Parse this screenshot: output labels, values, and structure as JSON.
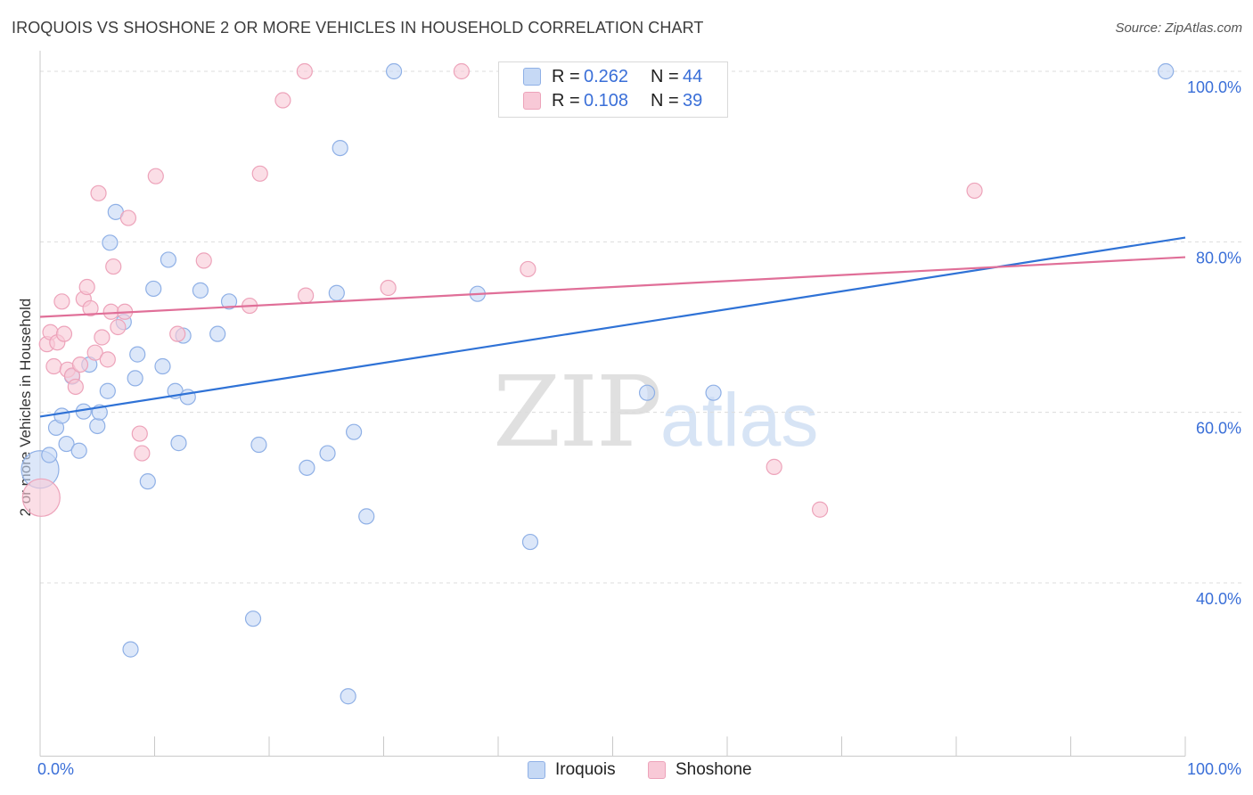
{
  "header": {
    "title": "IROQUOIS VS SHOSHONE 2 OR MORE VEHICLES IN HOUSEHOLD CORRELATION CHART",
    "source": "Source: ZipAtlas.com"
  },
  "watermark": {
    "zip": "ZIP",
    "atlas": "atlas"
  },
  "legend": {
    "r_label": "R =",
    "n_label": "N =",
    "rows": [
      {
        "series": "Iroquois",
        "r": "0.262",
        "n": "44"
      },
      {
        "series": "Shoshone",
        "r": "0.108",
        "n": "39"
      }
    ]
  },
  "colors": {
    "iroquois_fill": "#c6d9f5",
    "iroquois_stroke": "#8fb0e6",
    "iroquois_line": "#2f72d6",
    "shoshone_fill": "#f8c9d7",
    "shoshone_stroke": "#eda3ba",
    "shoshone_line": "#e06f98",
    "tick_label": "#3a6fd8"
  },
  "chart_data": {
    "type": "scatter",
    "title": "IROQUOIS VS SHOSHONE 2 OR MORE VEHICLES IN HOUSEHOLD CORRELATION CHART",
    "xlabel": "",
    "ylabel": "2 or more Vehicles in Household",
    "xlim": [
      0,
      100
    ],
    "ylim": [
      20,
      102
    ],
    "x_tick_labels": [
      "0.0%",
      "100.0%"
    ],
    "y_ticks": [
      40,
      60,
      80,
      100
    ],
    "y_tick_labels": [
      "40.0%",
      "60.0%",
      "80.0%",
      "100.0%"
    ],
    "grid": true,
    "legend_position": "top-center",
    "series": [
      {
        "name": "Iroquois",
        "r": 0.262,
        "n": 44,
        "trend": {
          "x": [
            0,
            100
          ],
          "y": [
            59.5,
            80.5
          ]
        },
        "points": [
          {
            "x": 0.0,
            "y": 53.3,
            "big": true
          },
          {
            "x": 0.8,
            "y": 55.0
          },
          {
            "x": 1.4,
            "y": 58.2
          },
          {
            "x": 1.9,
            "y": 59.6
          },
          {
            "x": 2.3,
            "y": 56.3
          },
          {
            "x": 2.8,
            "y": 64.2
          },
          {
            "x": 3.4,
            "y": 55.5
          },
          {
            "x": 3.8,
            "y": 60.1
          },
          {
            "x": 4.3,
            "y": 65.6
          },
          {
            "x": 5.0,
            "y": 58.4
          },
          {
            "x": 5.2,
            "y": 60.0
          },
          {
            "x": 5.9,
            "y": 62.5
          },
          {
            "x": 6.1,
            "y": 79.9
          },
          {
            "x": 6.6,
            "y": 83.5
          },
          {
            "x": 7.3,
            "y": 70.6
          },
          {
            "x": 7.9,
            "y": 32.2
          },
          {
            "x": 8.3,
            "y": 64.0
          },
          {
            "x": 8.5,
            "y": 66.8
          },
          {
            "x": 9.4,
            "y": 51.9
          },
          {
            "x": 9.9,
            "y": 74.5
          },
          {
            "x": 10.7,
            "y": 65.4
          },
          {
            "x": 11.2,
            "y": 77.9
          },
          {
            "x": 11.8,
            "y": 62.5
          },
          {
            "x": 12.1,
            "y": 56.4
          },
          {
            "x": 12.5,
            "y": 69.0
          },
          {
            "x": 12.9,
            "y": 61.8
          },
          {
            "x": 14.0,
            "y": 74.3
          },
          {
            "x": 15.5,
            "y": 69.2
          },
          {
            "x": 16.5,
            "y": 73.0
          },
          {
            "x": 18.6,
            "y": 35.8
          },
          {
            "x": 19.1,
            "y": 56.2
          },
          {
            "x": 23.3,
            "y": 53.5
          },
          {
            "x": 25.1,
            "y": 55.2
          },
          {
            "x": 25.9,
            "y": 74.0
          },
          {
            "x": 26.2,
            "y": 91.0
          },
          {
            "x": 26.9,
            "y": 26.7
          },
          {
            "x": 27.4,
            "y": 57.7
          },
          {
            "x": 28.5,
            "y": 47.8
          },
          {
            "x": 30.9,
            "y": 100.0
          },
          {
            "x": 38.2,
            "y": 73.9
          },
          {
            "x": 42.8,
            "y": 44.8
          },
          {
            "x": 53.0,
            "y": 62.3
          },
          {
            "x": 58.8,
            "y": 62.3
          },
          {
            "x": 98.3,
            "y": 100.0
          }
        ]
      },
      {
        "name": "Shoshone",
        "r": 0.108,
        "n": 39,
        "trend": {
          "x": [
            0,
            100
          ],
          "y": [
            71.2,
            78.2
          ]
        },
        "points": [
          {
            "x": 0.1,
            "y": 50.0,
            "big": true
          },
          {
            "x": 0.6,
            "y": 68.0
          },
          {
            "x": 0.9,
            "y": 69.4
          },
          {
            "x": 1.2,
            "y": 65.4
          },
          {
            "x": 1.5,
            "y": 68.2
          },
          {
            "x": 1.9,
            "y": 73.0
          },
          {
            "x": 2.1,
            "y": 69.2
          },
          {
            "x": 2.4,
            "y": 65.0
          },
          {
            "x": 2.8,
            "y": 64.3
          },
          {
            "x": 3.1,
            "y": 63.0
          },
          {
            "x": 3.5,
            "y": 65.6
          },
          {
            "x": 3.8,
            "y": 73.3
          },
          {
            "x": 4.1,
            "y": 74.7
          },
          {
            "x": 4.4,
            "y": 72.2
          },
          {
            "x": 4.8,
            "y": 67.0
          },
          {
            "x": 5.1,
            "y": 85.7
          },
          {
            "x": 5.4,
            "y": 68.8
          },
          {
            "x": 5.9,
            "y": 66.2
          },
          {
            "x": 6.2,
            "y": 71.8
          },
          {
            "x": 6.4,
            "y": 77.1
          },
          {
            "x": 6.8,
            "y": 70.0
          },
          {
            "x": 7.4,
            "y": 71.8
          },
          {
            "x": 7.7,
            "y": 82.8
          },
          {
            "x": 8.7,
            "y": 57.5
          },
          {
            "x": 8.9,
            "y": 55.2
          },
          {
            "x": 10.1,
            "y": 87.7
          },
          {
            "x": 12.0,
            "y": 69.2
          },
          {
            "x": 14.3,
            "y": 77.8
          },
          {
            "x": 18.3,
            "y": 72.5
          },
          {
            "x": 19.2,
            "y": 88.0
          },
          {
            "x": 21.2,
            "y": 96.6
          },
          {
            "x": 23.1,
            "y": 100.0
          },
          {
            "x": 23.2,
            "y": 73.7
          },
          {
            "x": 30.4,
            "y": 74.6
          },
          {
            "x": 36.8,
            "y": 100.0
          },
          {
            "x": 42.6,
            "y": 76.8
          },
          {
            "x": 64.1,
            "y": 53.6
          },
          {
            "x": 68.1,
            "y": 48.6
          },
          {
            "x": 81.6,
            "y": 86.0
          }
        ]
      }
    ]
  }
}
